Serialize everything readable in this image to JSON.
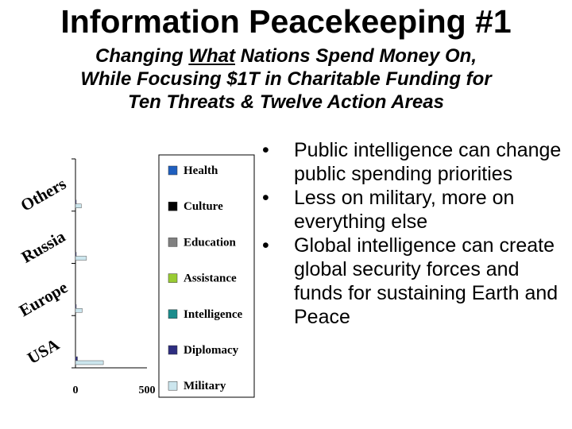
{
  "title": "Information Peacekeeping #1",
  "subtitle": {
    "line1_pre": "Changing ",
    "line1_underlined": "What",
    "line1_post": " Nations Spend Money On,",
    "line2": "While Focusing $1T in Charitable Funding for",
    "line3": "Ten Threats & Twelve Action Areas"
  },
  "bullets": [
    "Public intelligence can change public spending priorities",
    "Less on military, more on everything else",
    "Global intelligence can create  global security forces and funds for sustaining Earth and Peace"
  ],
  "bullet_glyph": "•",
  "chart_data": {
    "type": "bar",
    "orientation": "horizontal",
    "categories": [
      "Others",
      "Russia",
      "Europe",
      "USA"
    ],
    "series": [
      {
        "name": "Health",
        "color": "#1f5fbf",
        "values": [
          0,
          0,
          0,
          0
        ]
      },
      {
        "name": "Culture",
        "color": "#000000",
        "values": [
          0,
          0,
          0,
          0
        ]
      },
      {
        "name": "Education",
        "color": "#808080",
        "values": [
          0,
          0,
          0,
          0
        ]
      },
      {
        "name": "Assistance",
        "color": "#99cc33",
        "values": [
          0,
          0,
          0,
          0
        ]
      },
      {
        "name": "Intelligence",
        "color": "#1a8c8c",
        "values": [
          0,
          0,
          0,
          0
        ]
      },
      {
        "name": "Diplomacy",
        "color": "#2e2e80",
        "values": [
          2,
          2,
          2,
          14
        ]
      },
      {
        "name": "Military",
        "color": "#cce6ee",
        "values": [
          41,
          77,
          47,
          195
        ]
      }
    ],
    "x_ticks": [
      "0",
      "500"
    ],
    "xlim": [
      0,
      500
    ]
  }
}
